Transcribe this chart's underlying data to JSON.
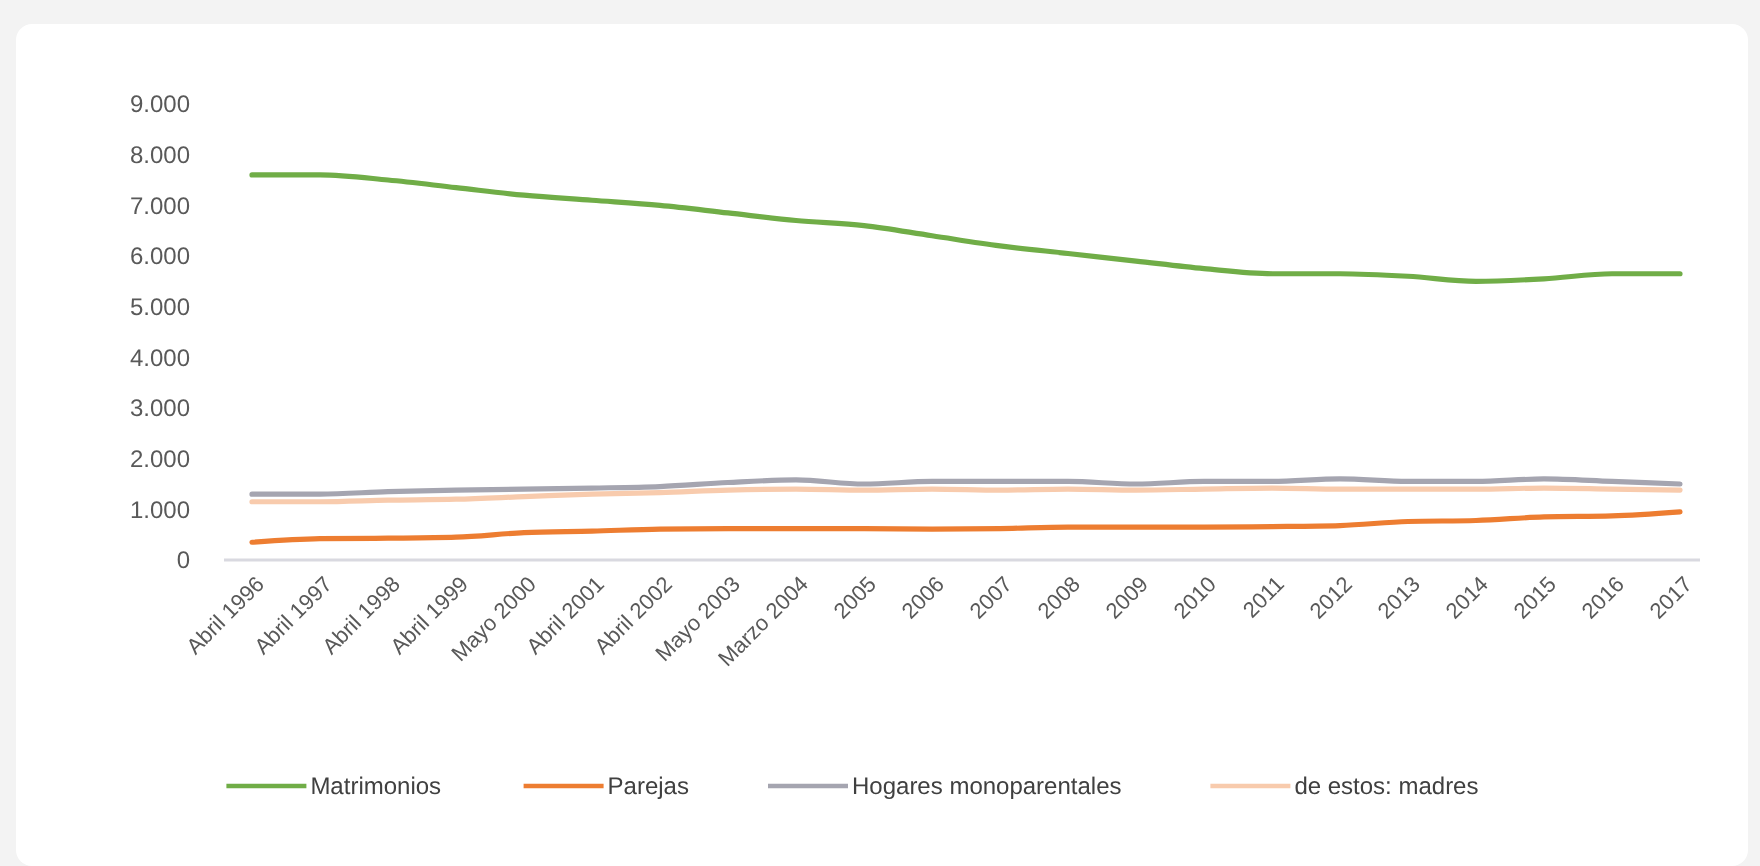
{
  "chart_data": {
    "type": "line",
    "categories": [
      "Abril 1996",
      "Abril 1997",
      "Abril 1998",
      "Abril 1999",
      "Mayo 2000",
      "Abril 2001",
      "Abril 2002",
      "Mayo 2003",
      "Marzo 2004",
      "2005",
      "2006",
      "2007",
      "2008",
      "2009",
      "2010",
      "2011",
      "2012",
      "2013",
      "2014",
      "2015",
      "2016",
      "2017"
    ],
    "ylim": [
      0,
      9000
    ],
    "yticks": [
      {
        "value": 0,
        "label": "0"
      },
      {
        "value": 1000,
        "label": "1.000"
      },
      {
        "value": 2000,
        "label": "2.000"
      },
      {
        "value": 3000,
        "label": "3.000"
      },
      {
        "value": 4000,
        "label": "4.000"
      },
      {
        "value": 5000,
        "label": "5.000"
      },
      {
        "value": 6000,
        "label": "6.000"
      },
      {
        "value": 7000,
        "label": "7.000"
      },
      {
        "value": 8000,
        "label": "8.000"
      },
      {
        "value": 9000,
        "label": "9.000"
      }
    ],
    "grid": false,
    "legend": "bottom",
    "marker": "none",
    "line_style": "solid",
    "series": [
      {
        "name": "Matrimonios",
        "color": "#70ad47",
        "values": [
          7600,
          7600,
          7500,
          7350,
          7200,
          7100,
          7000,
          6850,
          6700,
          6600,
          6400,
          6200,
          6050,
          5900,
          5750,
          5650,
          5650,
          5600,
          5500,
          5550,
          5650,
          5650
        ]
      },
      {
        "name": "Parejas",
        "color": "#ed7d31",
        "values": [
          350,
          420,
          430,
          450,
          540,
          570,
          610,
          620,
          620,
          620,
          610,
          620,
          650,
          650,
          650,
          660,
          680,
          760,
          780,
          850,
          870,
          950
        ]
      },
      {
        "name": "Hogares monoparentales",
        "color": "#a5a5b0",
        "values": [
          1300,
          1300,
          1350,
          1380,
          1400,
          1420,
          1450,
          1530,
          1580,
          1500,
          1550,
          1550,
          1550,
          1500,
          1550,
          1550,
          1600,
          1550,
          1550,
          1600,
          1550,
          1500
        ]
      },
      {
        "name": "de estos: madres",
        "color": "#f8cbad",
        "values": [
          1150,
          1150,
          1180,
          1200,
          1250,
          1300,
          1330,
          1380,
          1400,
          1380,
          1400,
          1380,
          1400,
          1380,
          1400,
          1420,
          1400,
          1400,
          1400,
          1420,
          1400,
          1380
        ]
      }
    ]
  }
}
